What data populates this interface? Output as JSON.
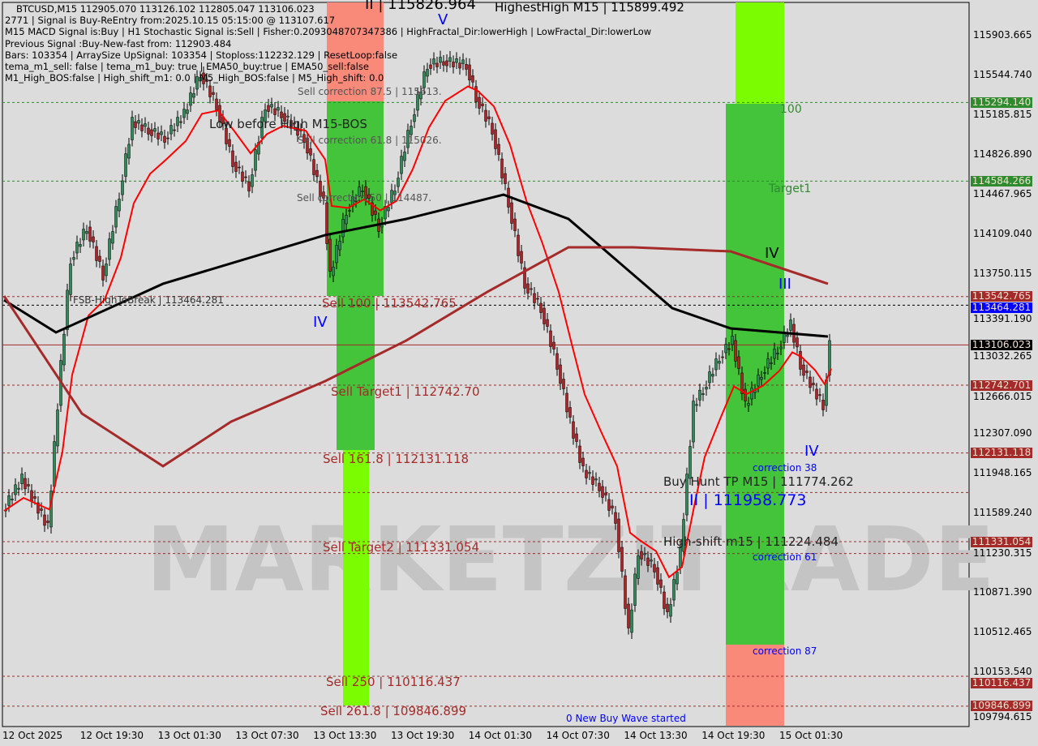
{
  "header": {
    "symbol_line": "BTCUSD,M15  112905.070 113126.102 112805.047 113106.023",
    "lines": [
      "2771 | Signal is Buy-ReEntry from:2025.10.15 05:15:00 @ 113107.617",
      "M15 MACD Signal is:Buy | H1 Stochastic Signal is:Sell | Fisher:0.2093048707347386 | HighFractal_Dir:lowerHigh | LowFractal_Dir:lowerLow",
      "Previous Signal :Buy-New-fast from: 112903.484",
      "Bars: 103354 | ArraySize UpSignal: 103354 | Stoploss:112232.129 | ResetLoop:false",
      "tema_m1_sell: false | tema_m1_buy: true | EMA50_buy:true | EMA50_sell:false",
      "M1_High_BOS:false | High_shift_m1: 0.0 | M5_High_BOS:false | M5_High_shift: 0.0"
    ]
  },
  "annotations": {
    "highest_high": "HighestHigh   M15 | 115899.492",
    "wave_ii_top": "II | 115826.964",
    "wave_v": "V",
    "sell_corr_875": "Sell correction 87.5 | 115613.",
    "low_before_high": "Low before High   M15-BOS",
    "sell_corr_618": "Sell correction 61.8 | 115026.",
    "sell_corr_50": "Sell correction 50 | 114487.",
    "fib_100": "100",
    "target1": "Target1",
    "fsb": "FSB-HighToBreak | 113464.281",
    "wave_iv_left": "IV",
    "sell_100": "Sell 100 | 113542.765",
    "sell_target1": "Sell Target1 | 112742.70",
    "sell_1618": "Sell 161.8 | 112131.118",
    "sell_target2": "Sell Target2 | 111331.054",
    "sell_250": "Sell  250 | 110116.437",
    "sell_2618": "Sell  261.8 | 109846.899",
    "new_buy_wave": "0 New Buy Wave started",
    "wave_iv_right": "IV",
    "wave_iii": "III",
    "wave_iv_low": "IV",
    "buy_hunt": "Buy Hunt TP M15 | 111774.262",
    "wave_ii_low": "II | 111958.773",
    "high_shift": "High-shift m15 | 111224.484",
    "corr38": "correction 38",
    "corr61": "correction 61",
    "corr87": "correction 87",
    "watermark": "MARKETZITRADE"
  },
  "price_axis": [
    "115903.665",
    "115544.740",
    "115185.815",
    "114826.890",
    "114467.965",
    "114109.040",
    "113750.115",
    "113391.190",
    "113032.265",
    "112666.015",
    "112307.090",
    "111948.165",
    "111589.240",
    "111230.315",
    "110871.390",
    "110512.465",
    "110153.540",
    "109794.615"
  ],
  "price_tags": [
    {
      "v": "115294.140",
      "c": "#2e8b2e"
    },
    {
      "v": "114584.266",
      "c": "#2e8b2e"
    },
    {
      "v": "113542.765",
      "c": "#a52a2a"
    },
    {
      "v": "113464.281",
      "c": "#0000ff"
    },
    {
      "v": "113106.023",
      "c": "#000000"
    },
    {
      "v": "112742.701",
      "c": "#a52a2a"
    },
    {
      "v": "112131.118",
      "c": "#a52a2a"
    },
    {
      "v": "111331.054",
      "c": "#a52a2a"
    },
    {
      "v": "110116.437",
      "c": "#a52a2a"
    },
    {
      "v": "109846.899",
      "c": "#a52a2a"
    }
  ],
  "time_axis": [
    "12 Oct 2025",
    "12 Oct 19:30",
    "13 Oct 01:30",
    "13 Oct 07:30",
    "13 Oct 13:30",
    "13 Oct 19:30",
    "14 Oct 01:30",
    "14 Oct 07:30",
    "14 Oct 13:30",
    "14 Oct 19:30",
    "15 Oct 01:30"
  ],
  "chart_data": {
    "type": "line",
    "title": "BTCUSD,M15",
    "ylim": [
      109794.615,
      116200
    ],
    "xstart": "12 Oct 13:30",
    "xend": "15 Oct 06:45",
    "series": [
      {
        "role": "price",
        "color": "#000000",
        "points": [
          [
            "12 Oct 13:30",
            111609
          ],
          [
            "12 Oct 15:00",
            111902
          ],
          [
            "12 Oct 17:00",
            111463
          ],
          [
            "12 Oct 18:00",
            112926
          ],
          [
            "12 Oct 18:45",
            113877
          ],
          [
            "12 Oct 20:00",
            114170
          ],
          [
            "12 Oct 21:15",
            113731
          ],
          [
            "12 Oct 22:30",
            114462
          ],
          [
            "12 Oct 23:30",
            115121
          ],
          [
            "13 Oct 00:45",
            115048
          ],
          [
            "13 Oct 02:00",
            114974
          ],
          [
            "13 Oct 03:30",
            115194
          ],
          [
            "13 Oct 04:45",
            115560
          ],
          [
            "13 Oct 06:00",
            115267
          ],
          [
            "13 Oct 07:15",
            114755
          ],
          [
            "13 Oct 08:30",
            114535
          ],
          [
            "13 Oct 09:45",
            115267
          ],
          [
            "13 Oct 11:00",
            115194
          ],
          [
            "13 Oct 12:45",
            114974
          ],
          [
            "13 Oct 14:15",
            114389
          ],
          [
            "13 Oct 14:45",
            113731
          ],
          [
            "13 Oct 16:00",
            114316
          ],
          [
            "13 Oct 17:15",
            114535
          ],
          [
            "13 Oct 18:30",
            114170
          ],
          [
            "13 Oct 19:45",
            114535
          ],
          [
            "13 Oct 21:00",
            115121
          ],
          [
            "13 Oct 22:15",
            115633
          ],
          [
            "13 Oct 23:30",
            115670
          ],
          [
            "14 Oct 01:15",
            115633
          ],
          [
            "14 Oct 02:00",
            115340
          ],
          [
            "14 Oct 03:15",
            115048
          ],
          [
            "14 Oct 04:30",
            114389
          ],
          [
            "14 Oct 05:45",
            113658
          ],
          [
            "14 Oct 07:00",
            113438
          ],
          [
            "14 Oct 08:15",
            112926
          ],
          [
            "14 Oct 09:15",
            112414
          ],
          [
            "14 Oct 10:15",
            111975
          ],
          [
            "14 Oct 11:30",
            111829
          ],
          [
            "14 Oct 12:45",
            111536
          ],
          [
            "14 Oct 13:45",
            110512
          ],
          [
            "14 Oct 14:30",
            111243
          ],
          [
            "14 Oct 15:45",
            111097
          ],
          [
            "14 Oct 16:45",
            110658
          ],
          [
            "14 Oct 17:45",
            111243
          ],
          [
            "14 Oct 18:45",
            112560
          ],
          [
            "14 Oct 19:30",
            112707
          ],
          [
            "14 Oct 20:45",
            112999
          ],
          [
            "14 Oct 21:45",
            113146
          ],
          [
            "14 Oct 22:45",
            112560
          ],
          [
            "15 Oct 00:00",
            112853
          ],
          [
            "15 Oct 01:15",
            113072
          ],
          [
            "15 Oct 02:15",
            113292
          ],
          [
            "15 Oct 03:00",
            112926
          ],
          [
            "15 Oct 04:00",
            112707
          ],
          [
            "15 Oct 04:45",
            112560
          ],
          [
            "15 Oct 05:15",
            113106
          ]
        ]
      },
      {
        "role": "ma-black",
        "color": "#000000",
        "points": [
          [
            "12 Oct 13:30",
            113511
          ],
          [
            "12 Oct 17:30",
            113219
          ],
          [
            "13 Oct 01:45",
            113658
          ],
          [
            "13 Oct 14:15",
            114097
          ],
          [
            "13 Oct 20:30",
            114243
          ],
          [
            "14 Oct 04:00",
            114462
          ],
          [
            "14 Oct 09:00",
            114243
          ],
          [
            "14 Oct 17:00",
            113438
          ],
          [
            "14 Oct 21:30",
            113255
          ],
          [
            "15 Oct 05:00",
            113182
          ]
        ]
      },
      {
        "role": "ma-brown",
        "color": "#a52a2a",
        "points": [
          [
            "12 Oct 13:30",
            113548
          ],
          [
            "12 Oct 19:30",
            112487
          ],
          [
            "13 Oct 01:45",
            112012
          ],
          [
            "13 Oct 07:00",
            112414
          ],
          [
            "13 Oct 14:15",
            112780
          ],
          [
            "13 Oct 20:30",
            113146
          ],
          [
            "14 Oct 02:45",
            113585
          ],
          [
            "14 Oct 09:00",
            113987
          ],
          [
            "14 Oct 14:00",
            113987
          ],
          [
            "14 Oct 21:30",
            113950
          ],
          [
            "15 Oct 05:00",
            113658
          ]
        ]
      }
    ],
    "levels": [
      115294.14,
      114584.266,
      113542.765,
      113464.281,
      113106.023,
      112742.701,
      112131.118,
      111774.262,
      111331.054,
      111224.484,
      110116.437,
      109846.899
    ]
  }
}
